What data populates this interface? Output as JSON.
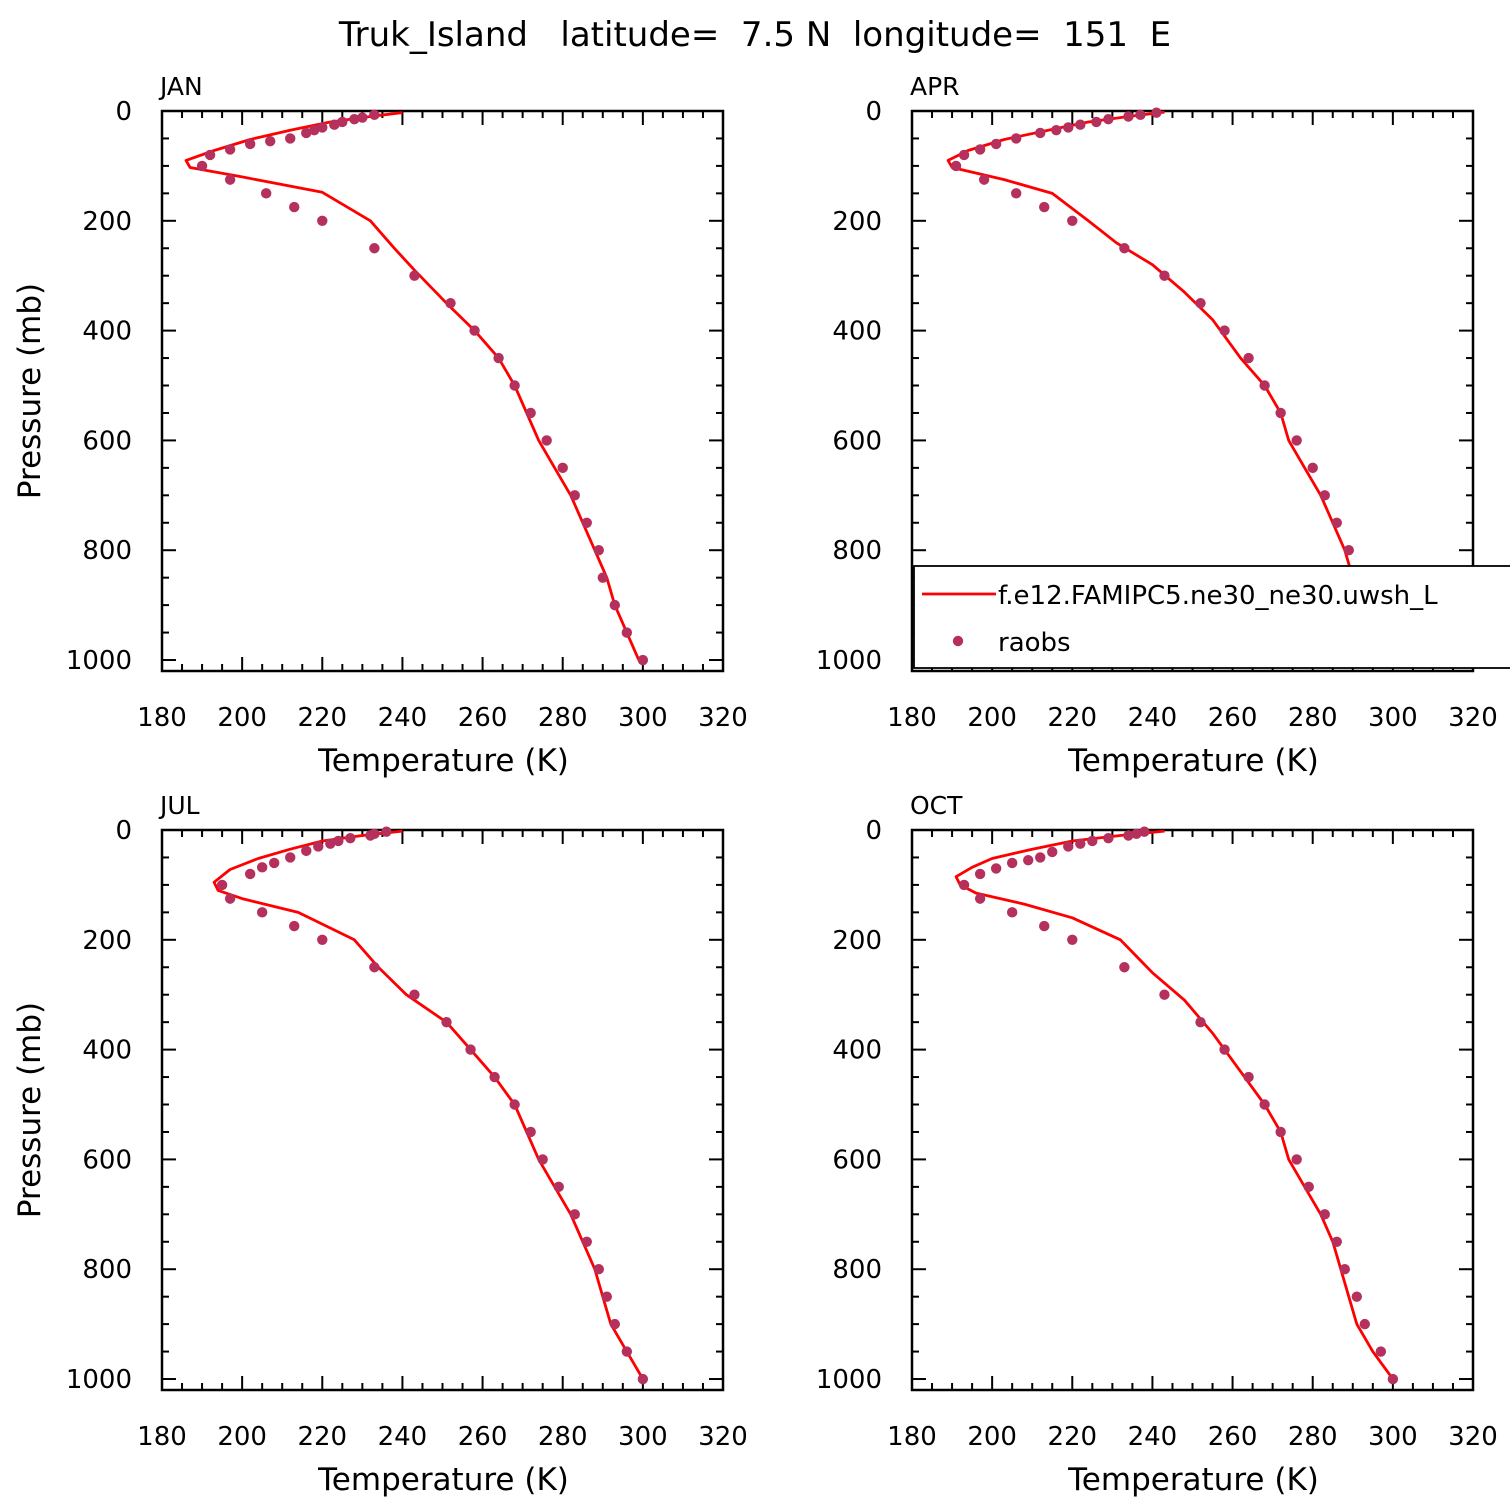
{
  "figure": {
    "title": "Truk_Island   latitude=  7.5 N  longitude=  151  E"
  },
  "colors": {
    "model_line": "#ff0000",
    "obs_marker": "#b5305c",
    "axes": "#000000"
  },
  "legend": {
    "panel": 1,
    "entries": [
      {
        "label": "f.e12.FAMIPC5.ne30_ne30.uwsh_L",
        "kind": "line"
      },
      {
        "label": "raobs",
        "kind": "marker"
      }
    ]
  },
  "chart_data": [
    {
      "type": "line",
      "panel_label": "JAN",
      "xlabel": "Temperature (K)",
      "ylabel": "Pressure (mb)",
      "xlim": [
        180,
        320
      ],
      "ylim": [
        0,
        1020
      ],
      "y_inverted": true,
      "xticks": [
        "180",
        "200",
        "220",
        "240",
        "260",
        "280",
        "300",
        "320"
      ],
      "yticks": [
        "0",
        "200",
        "400",
        "600",
        "800",
        "1000"
      ],
      "grid": false,
      "legend": null,
      "series": [
        {
          "name": "f.e12.FAMIPC5.ne30_ne30.uwsh_L",
          "style": "line",
          "points": [
            [
              240,
              3
            ],
            [
              232,
              10
            ],
            [
              222,
              20
            ],
            [
              212,
              35
            ],
            [
              202,
              52
            ],
            [
              193,
              72
            ],
            [
              186,
              90
            ],
            [
              187,
              103
            ],
            [
              200,
              120
            ],
            [
              220,
              148
            ],
            [
              232,
              200
            ],
            [
              238,
              250
            ],
            [
              243,
              290
            ],
            [
              251,
              350
            ],
            [
              258,
              400
            ],
            [
              264,
              450
            ],
            [
              268,
              500
            ],
            [
              271,
              550
            ],
            [
              274,
              600
            ],
            [
              278,
              650
            ],
            [
              282,
              700
            ],
            [
              285,
              750
            ],
            [
              288,
              800
            ],
            [
              291,
              850
            ],
            [
              293,
              900
            ],
            [
              296,
              950
            ],
            [
              299,
              1000
            ]
          ]
        },
        {
          "name": "raobs",
          "style": "markers",
          "points": [
            [
              233,
              7
            ],
            [
              230,
              12
            ],
            [
              228,
              15
            ],
            [
              225,
              20
            ],
            [
              223,
              25
            ],
            [
              220,
              30
            ],
            [
              218,
              35
            ],
            [
              216,
              40
            ],
            [
              212,
              50
            ],
            [
              207,
              55
            ],
            [
              202,
              60
            ],
            [
              197,
              70
            ],
            [
              192,
              80
            ],
            [
              190,
              100
            ],
            [
              197,
              125
            ],
            [
              206,
              150
            ],
            [
              213,
              175
            ],
            [
              220,
              200
            ],
            [
              233,
              250
            ],
            [
              243,
              300
            ],
            [
              252,
              350
            ],
            [
              258,
              400
            ],
            [
              264,
              450
            ],
            [
              268,
              500
            ],
            [
              272,
              550
            ],
            [
              276,
              600
            ],
            [
              280,
              650
            ],
            [
              283,
              700
            ],
            [
              286,
              750
            ],
            [
              289,
              800
            ],
            [
              290,
              850
            ],
            [
              293,
              900
            ],
            [
              296,
              950
            ],
            [
              300,
              1000
            ]
          ]
        }
      ]
    },
    {
      "type": "line",
      "panel_label": "APR",
      "xlabel": "Temperature (K)",
      "ylabel": "",
      "xlim": [
        180,
        320
      ],
      "ylim": [
        0,
        1020
      ],
      "y_inverted": true,
      "xticks": [
        "180",
        "200",
        "220",
        "240",
        "260",
        "280",
        "300",
        "320"
      ],
      "yticks": [
        "0",
        "200",
        "400",
        "600",
        "800",
        "1000"
      ],
      "grid": false,
      "legend": "bottom-right",
      "series": [
        {
          "name": "f.e12.FAMIPC5.ne30_ne30.uwsh_L",
          "style": "line",
          "points": [
            [
              243,
              2
            ],
            [
              234,
              10
            ],
            [
              224,
              20
            ],
            [
              214,
              35
            ],
            [
              203,
              52
            ],
            [
              194,
              72
            ],
            [
              189,
              90
            ],
            [
              190,
              103
            ],
            [
              203,
              125
            ],
            [
              215,
              150
            ],
            [
              224,
              200
            ],
            [
              231,
              240
            ],
            [
              240,
              280
            ],
            [
              248,
              330
            ],
            [
              255,
              380
            ],
            [
              262,
              450
            ],
            [
              268,
              500
            ],
            [
              272,
              550
            ],
            [
              274,
              600
            ],
            [
              278,
              650
            ],
            [
              282,
              700
            ],
            [
              285,
              750
            ],
            [
              288,
              800
            ],
            [
              290,
              850
            ],
            [
              292,
              900
            ],
            [
              296,
              950
            ],
            [
              300,
              1000
            ]
          ]
        },
        {
          "name": "raobs",
          "style": "markers",
          "points": [
            [
              241,
              3
            ],
            [
              237,
              7
            ],
            [
              234,
              10
            ],
            [
              229,
              15
            ],
            [
              226,
              20
            ],
            [
              222,
              25
            ],
            [
              219,
              30
            ],
            [
              216,
              35
            ],
            [
              212,
              40
            ],
            [
              206,
              50
            ],
            [
              201,
              60
            ],
            [
              197,
              70
            ],
            [
              193,
              80
            ],
            [
              191,
              100
            ],
            [
              198,
              125
            ],
            [
              206,
              150
            ],
            [
              213,
              175
            ],
            [
              220,
              200
            ],
            [
              233,
              250
            ],
            [
              243,
              300
            ],
            [
              252,
              350
            ],
            [
              258,
              400
            ],
            [
              264,
              450
            ],
            [
              268,
              500
            ],
            [
              272,
              550
            ],
            [
              276,
              600
            ],
            [
              280,
              650
            ],
            [
              283,
              700
            ],
            [
              286,
              750
            ],
            [
              289,
              800
            ],
            [
              290,
              850
            ],
            [
              293,
              900
            ],
            [
              297,
              950
            ],
            [
              301,
              1000
            ]
          ]
        }
      ]
    },
    {
      "type": "line",
      "panel_label": "JUL",
      "xlabel": "Temperature (K)",
      "ylabel": "Pressure (mb)",
      "xlim": [
        180,
        320
      ],
      "ylim": [
        0,
        1020
      ],
      "y_inverted": true,
      "xticks": [
        "180",
        "200",
        "220",
        "240",
        "260",
        "280",
        "300",
        "320"
      ],
      "yticks": [
        "0",
        "200",
        "400",
        "600",
        "800",
        "1000"
      ],
      "grid": false,
      "legend": null,
      "series": [
        {
          "name": "f.e12.FAMIPC5.ne30_ne30.uwsh_L",
          "style": "line",
          "points": [
            [
              240,
              2
            ],
            [
              230,
              10
            ],
            [
              220,
              20
            ],
            [
              212,
              35
            ],
            [
              204,
              52
            ],
            [
              197,
              72
            ],
            [
              193,
              95
            ],
            [
              194,
              110
            ],
            [
              200,
              125
            ],
            [
              214,
              150
            ],
            [
              228,
              200
            ],
            [
              234,
              250
            ],
            [
              241,
              300
            ],
            [
              251,
              350
            ],
            [
              257,
              400
            ],
            [
              263,
              450
            ],
            [
              268,
              500
            ],
            [
              271,
              550
            ],
            [
              274,
              600
            ],
            [
              278,
              650
            ],
            [
              282,
              700
            ],
            [
              285,
              750
            ],
            [
              288,
              800
            ],
            [
              290,
              850
            ],
            [
              292,
              900
            ],
            [
              296,
              950
            ],
            [
              300,
              1000
            ]
          ]
        },
        {
          "name": "raobs",
          "style": "markers",
          "points": [
            [
              236,
              3
            ],
            [
              233,
              7
            ],
            [
              232,
              10
            ],
            [
              227,
              15
            ],
            [
              224,
              20
            ],
            [
              222,
              25
            ],
            [
              219,
              30
            ],
            [
              216,
              38
            ],
            [
              212,
              50
            ],
            [
              208,
              60
            ],
            [
              205,
              68
            ],
            [
              202,
              80
            ],
            [
              195,
              100
            ],
            [
              197,
              125
            ],
            [
              205,
              150
            ],
            [
              213,
              175
            ],
            [
              220,
              200
            ],
            [
              233,
              250
            ],
            [
              243,
              300
            ],
            [
              251,
              350
            ],
            [
              257,
              400
            ],
            [
              263,
              450
            ],
            [
              268,
              500
            ],
            [
              272,
              550
            ],
            [
              275,
              600
            ],
            [
              279,
              650
            ],
            [
              283,
              700
            ],
            [
              286,
              750
            ],
            [
              289,
              800
            ],
            [
              291,
              850
            ],
            [
              293,
              900
            ],
            [
              296,
              950
            ],
            [
              300,
              1000
            ]
          ]
        }
      ]
    },
    {
      "type": "line",
      "panel_label": "OCT",
      "xlabel": "Temperature (K)",
      "ylabel": "",
      "xlim": [
        180,
        320
      ],
      "ylim": [
        0,
        1020
      ],
      "y_inverted": true,
      "xticks": [
        "180",
        "200",
        "220",
        "240",
        "260",
        "280",
        "300",
        "320"
      ],
      "yticks": [
        "0",
        "200",
        "400",
        "600",
        "800",
        "1000"
      ],
      "grid": false,
      "legend": null,
      "series": [
        {
          "name": "f.e12.FAMIPC5.ne30_ne30.uwsh_L",
          "style": "line",
          "points": [
            [
              243,
              2
            ],
            [
              232,
              10
            ],
            [
              220,
              20
            ],
            [
              210,
              35
            ],
            [
              200,
              52
            ],
            [
              195,
              68
            ],
            [
              191,
              85
            ],
            [
              192,
              100
            ],
            [
              196,
              115
            ],
            [
              208,
              135
            ],
            [
              220,
              160
            ],
            [
              232,
              200
            ],
            [
              240,
              260
            ],
            [
              248,
              310
            ],
            [
              255,
              370
            ],
            [
              262,
              440
            ],
            [
              268,
              500
            ],
            [
              272,
              550
            ],
            [
              274,
              600
            ],
            [
              278,
              650
            ],
            [
              282,
              700
            ],
            [
              285,
              750
            ],
            [
              287,
              800
            ],
            [
              289,
              850
            ],
            [
              291,
              900
            ],
            [
              295,
              950
            ],
            [
              300,
              1000
            ]
          ]
        },
        {
          "name": "raobs",
          "style": "markers",
          "points": [
            [
              238,
              3
            ],
            [
              236,
              7
            ],
            [
              234,
              10
            ],
            [
              229,
              15
            ],
            [
              225,
              20
            ],
            [
              222,
              25
            ],
            [
              219,
              30
            ],
            [
              215,
              40
            ],
            [
              212,
              50
            ],
            [
              209,
              55
            ],
            [
              205,
              60
            ],
            [
              201,
              70
            ],
            [
              197,
              80
            ],
            [
              193,
              100
            ],
            [
              197,
              125
            ],
            [
              205,
              150
            ],
            [
              213,
              175
            ],
            [
              220,
              200
            ],
            [
              233,
              250
            ],
            [
              243,
              300
            ],
            [
              252,
              350
            ],
            [
              258,
              400
            ],
            [
              264,
              450
            ],
            [
              268,
              500
            ],
            [
              272,
              550
            ],
            [
              276,
              600
            ],
            [
              279,
              650
            ],
            [
              283,
              700
            ],
            [
              286,
              750
            ],
            [
              288,
              800
            ],
            [
              291,
              850
            ],
            [
              293,
              900
            ],
            [
              297,
              950
            ],
            [
              300,
              1000
            ]
          ]
        }
      ]
    }
  ]
}
